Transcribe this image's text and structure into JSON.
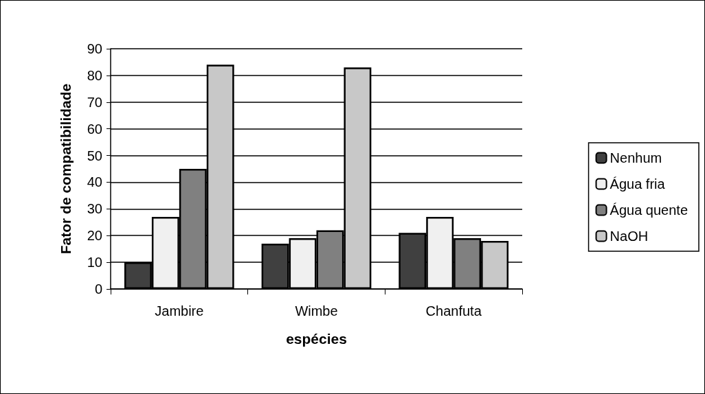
{
  "chart_data": {
    "type": "bar",
    "xlabel": "espécies",
    "ylabel": "Fator de compatibilidade",
    "categories": [
      "Jambire",
      "Wimbe",
      "Chanfuta"
    ],
    "series": [
      {
        "name": "Nenhum",
        "color": "#404040",
        "values": [
          10,
          17,
          21
        ]
      },
      {
        "name": "Água fria",
        "color": "#f0f0f0",
        "values": [
          27,
          19,
          27
        ]
      },
      {
        "name": "Água quente",
        "color": "#808080",
        "values": [
          45,
          22,
          19
        ]
      },
      {
        "name": "NaOH",
        "color": "#c8c8c8",
        "values": [
          84,
          83,
          18
        ]
      }
    ],
    "ylim": [
      0,
      90
    ],
    "yticks": [
      0,
      10,
      20,
      30,
      40,
      50,
      60,
      70,
      80,
      90
    ],
    "grid": "y",
    "legend": "right"
  }
}
